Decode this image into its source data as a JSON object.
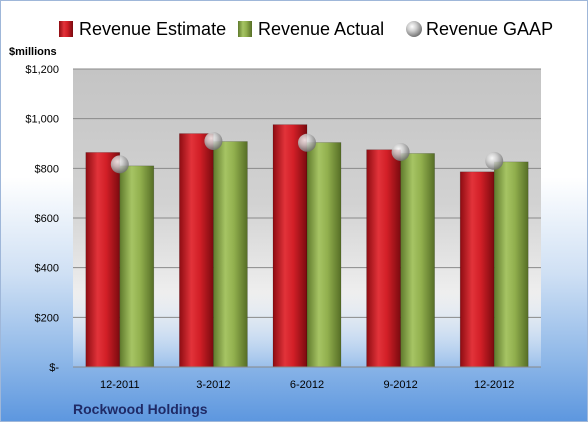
{
  "chart_data": {
    "type": "bar",
    "categories": [
      "12-2011",
      "3-2012",
      "6-2012",
      "9-2012",
      "12-2012"
    ],
    "series": [
      {
        "name": "Revenue Estimate",
        "values": [
          864,
          940,
          976,
          875,
          786
        ],
        "color": "#d0202a"
      },
      {
        "name": "Revenue Actual",
        "values": [
          810,
          908,
          904,
          860,
          826
        ],
        "color": "#8fb04a"
      },
      {
        "name": "Revenue GAAP",
        "values": [
          816,
          910,
          903,
          866,
          830
        ],
        "color": "#b8b8b8",
        "marker": "sphere"
      }
    ],
    "ylabel": "$millions",
    "ylim": [
      0,
      1200
    ],
    "yticks": [
      {
        "value": 0,
        "label": "$-"
      },
      {
        "value": 200,
        "label": "$200"
      },
      {
        "value": 400,
        "label": "$400"
      },
      {
        "value": 600,
        "label": "$600"
      },
      {
        "value": 800,
        "label": "$800"
      },
      {
        "value": 1000,
        "label": "$1,000"
      },
      {
        "value": 1200,
        "label": "$1,200"
      }
    ],
    "legend_position": "top",
    "grid": true
  },
  "company": "Rockwood Holdings"
}
